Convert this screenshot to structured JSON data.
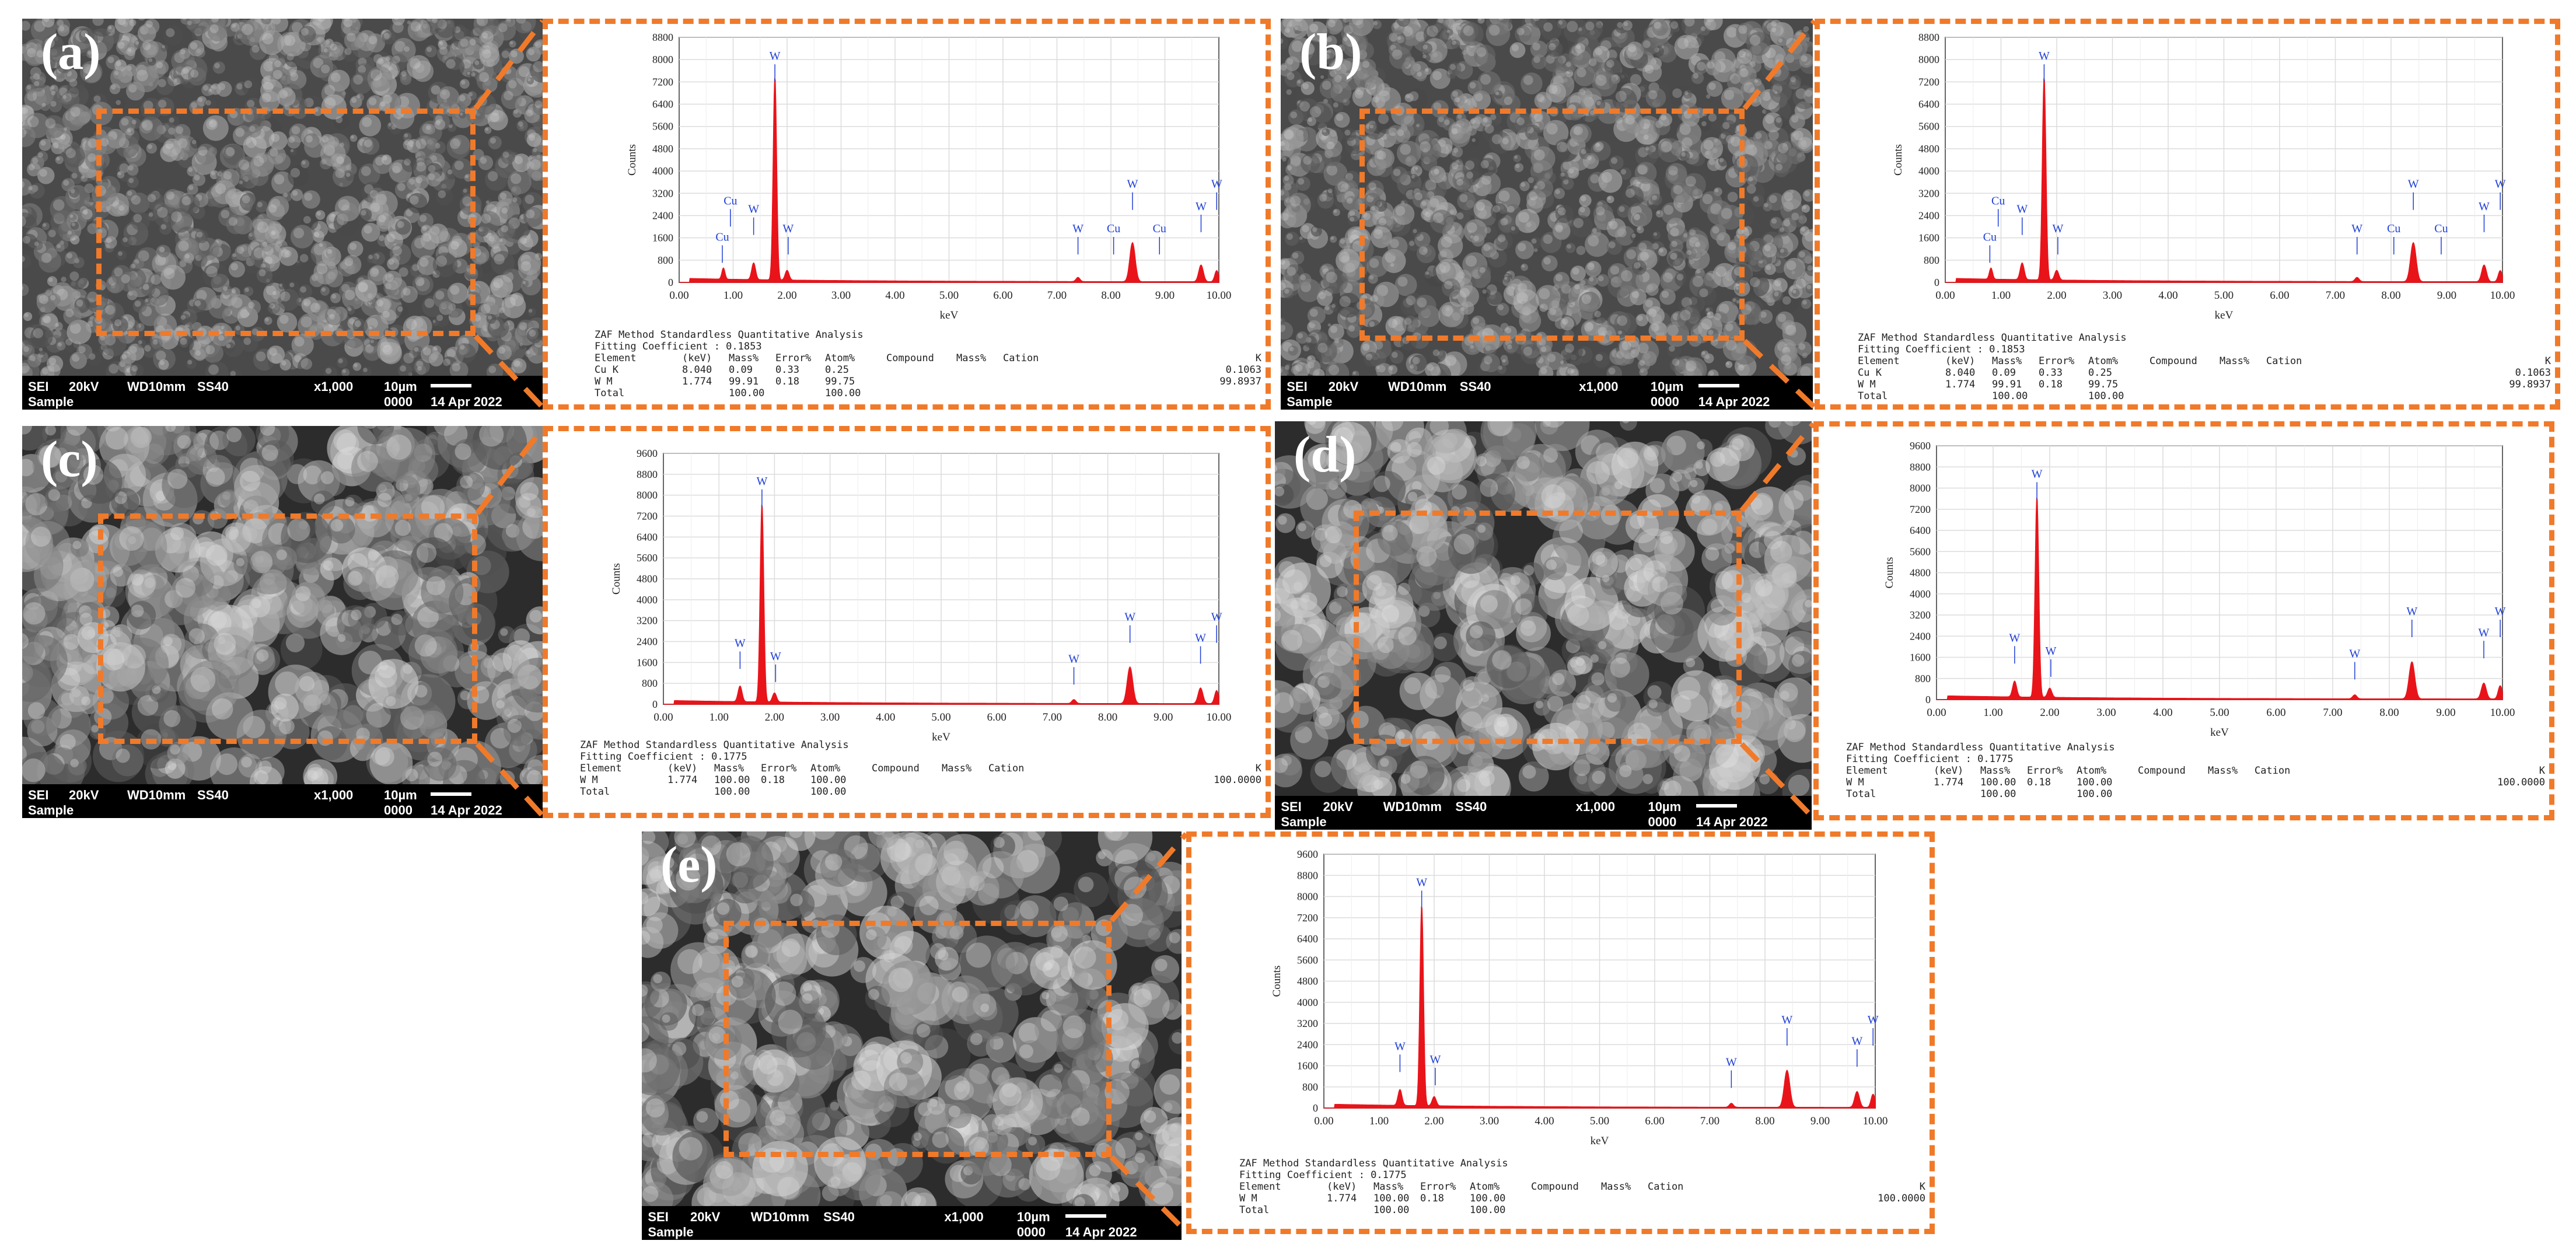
{
  "colors": {
    "dash": "#f07a2a",
    "spectrum": "#e8141a",
    "peak_label": "#1f3fd6",
    "grid": "#dcdcdc"
  },
  "panels": [
    {
      "id": "a",
      "label": "(a)",
      "sem": {
        "mode": "SEI",
        "kv": "20kV",
        "wd": "WD10mm",
        "ss": "SS40",
        "mag": "x1,000",
        "scale": "10µm",
        "sample": "Sample",
        "num": "0000",
        "date": "14 Apr 2022"
      },
      "spectrum": {
        "ylabel": "Counts",
        "xlabel": "keV",
        "yticks": [
          "0",
          "800",
          "1600",
          "2400",
          "3200",
          "4000",
          "4800",
          "5600",
          "6400",
          "7200",
          "8000",
          "8800"
        ],
        "ymax": 8800,
        "xticks": [
          "0.00",
          "1.00",
          "2.00",
          "3.00",
          "4.00",
          "5.00",
          "6.00",
          "7.00",
          "8.00",
          "9.00",
          "10.00"
        ],
        "peaks": [
          {
            "kev": 0.82,
            "counts": 400,
            "w": 0.04
          },
          {
            "kev": 1.38,
            "counts": 600,
            "w": 0.05
          },
          {
            "kev": 1.774,
            "counts": 7300,
            "w": 0.045
          },
          {
            "kev": 2.0,
            "counts": 350,
            "w": 0.05
          },
          {
            "kev": 7.39,
            "counts": 150,
            "w": 0.05
          },
          {
            "kev": 8.4,
            "counts": 1400,
            "w": 0.07
          },
          {
            "kev": 9.67,
            "counts": 600,
            "w": 0.06
          },
          {
            "kev": 9.96,
            "counts": 400,
            "w": 0.05
          }
        ],
        "labels": [
          {
            "text": "Cu",
            "kev": 0.8,
            "counts": 1500
          },
          {
            "text": "Cu",
            "kev": 0.95,
            "counts": 2800
          },
          {
            "text": "W",
            "kev": 1.38,
            "counts": 2500
          },
          {
            "text": "W",
            "kev": 1.774,
            "counts": 8000
          },
          {
            "text": "W",
            "kev": 2.02,
            "counts": 1800
          },
          {
            "text": "W",
            "kev": 7.39,
            "counts": 1800
          },
          {
            "text": "Cu",
            "kev": 8.05,
            "counts": 1800
          },
          {
            "text": "W",
            "kev": 8.4,
            "counts": 3400
          },
          {
            "text": "Cu",
            "kev": 8.9,
            "counts": 1800
          },
          {
            "text": "W",
            "kev": 9.67,
            "counts": 2600
          },
          {
            "text": "W",
            "kev": 9.96,
            "counts": 3400
          }
        ]
      },
      "zaf": {
        "title": "ZAF Method Standardless Quantitative Analysis",
        "fit": "Fitting Coefficient : 0.1853",
        "header": [
          "Element",
          "(keV)",
          "Mass%",
          "Error%",
          "Atom%",
          "Compound",
          "Mass%",
          "Cation",
          "K"
        ],
        "rows": [
          [
            "Cu K",
            "8.040",
            "0.09",
            "0.33",
            "0.25",
            "",
            "",
            "",
            "0.1063"
          ],
          [
            "W M",
            "1.774",
            "99.91",
            "0.18",
            "99.75",
            "",
            "",
            "",
            "99.8937"
          ]
        ],
        "total": [
          "Total",
          "",
          "100.00",
          "",
          "100.00"
        ]
      }
    },
    {
      "id": "b",
      "label": "(b)",
      "sem": {
        "mode": "SEI",
        "kv": "20kV",
        "wd": "WD10mm",
        "ss": "SS40",
        "mag": "x1,000",
        "scale": "10µm",
        "sample": "Sample",
        "num": "0000",
        "date": "14 Apr 2022"
      },
      "spectrum": {
        "ylabel": "Counts",
        "xlabel": "keV",
        "yticks": [
          "0",
          "800",
          "1600",
          "2400",
          "3200",
          "4000",
          "4800",
          "5600",
          "6400",
          "7200",
          "8000",
          "8800"
        ],
        "ymax": 8800,
        "xticks": [
          "0.00",
          "1.00",
          "2.00",
          "3.00",
          "4.00",
          "5.00",
          "6.00",
          "7.00",
          "8.00",
          "9.00",
          "10.00"
        ],
        "peaks": [
          {
            "kev": 0.82,
            "counts": 400,
            "w": 0.04
          },
          {
            "kev": 1.38,
            "counts": 600,
            "w": 0.05
          },
          {
            "kev": 1.774,
            "counts": 7300,
            "w": 0.045
          },
          {
            "kev": 2.0,
            "counts": 350,
            "w": 0.05
          },
          {
            "kev": 7.39,
            "counts": 150,
            "w": 0.05
          },
          {
            "kev": 8.4,
            "counts": 1400,
            "w": 0.07
          },
          {
            "kev": 9.67,
            "counts": 600,
            "w": 0.06
          },
          {
            "kev": 9.96,
            "counts": 400,
            "w": 0.05
          }
        ],
        "labels": [
          {
            "text": "Cu",
            "kev": 0.8,
            "counts": 1500
          },
          {
            "text": "Cu",
            "kev": 0.95,
            "counts": 2800
          },
          {
            "text": "W",
            "kev": 1.38,
            "counts": 2500
          },
          {
            "text": "W",
            "kev": 1.774,
            "counts": 8000
          },
          {
            "text": "W",
            "kev": 2.02,
            "counts": 1800
          },
          {
            "text": "W",
            "kev": 7.39,
            "counts": 1800
          },
          {
            "text": "Cu",
            "kev": 8.05,
            "counts": 1800
          },
          {
            "text": "W",
            "kev": 8.4,
            "counts": 3400
          },
          {
            "text": "Cu",
            "kev": 8.9,
            "counts": 1800
          },
          {
            "text": "W",
            "kev": 9.67,
            "counts": 2600
          },
          {
            "text": "W",
            "kev": 9.96,
            "counts": 3400
          }
        ]
      },
      "zaf": {
        "title": "ZAF Method Standardless Quantitative Analysis",
        "fit": "Fitting Coefficient : 0.1853",
        "header": [
          "Element",
          "(keV)",
          "Mass%",
          "Error%",
          "Atom%",
          "Compound",
          "Mass%",
          "Cation",
          "K"
        ],
        "rows": [
          [
            "Cu K",
            "8.040",
            "0.09",
            "0.33",
            "0.25",
            "",
            "",
            "",
            "0.1063"
          ],
          [
            "W M",
            "1.774",
            "99.91",
            "0.18",
            "99.75",
            "",
            "",
            "",
            "99.8937"
          ]
        ],
        "total": [
          "Total",
          "",
          "100.00",
          "",
          "100.00"
        ]
      }
    },
    {
      "id": "c",
      "label": "(c)",
      "sem": {
        "mode": "SEI",
        "kv": "20kV",
        "wd": "WD10mm",
        "ss": "SS40",
        "mag": "x1,000",
        "scale": "10µm",
        "sample": "Sample",
        "num": "0000",
        "date": "14 Apr 2022"
      },
      "spectrum": {
        "ylabel": "Counts",
        "xlabel": "keV",
        "yticks": [
          "0",
          "800",
          "1600",
          "2400",
          "3200",
          "4000",
          "4800",
          "5600",
          "6400",
          "7200",
          "8000",
          "8800",
          "9600"
        ],
        "ymax": 9600,
        "xticks": [
          "0.00",
          "1.00",
          "2.00",
          "3.00",
          "4.00",
          "5.00",
          "6.00",
          "7.00",
          "8.00",
          "9.00",
          "10.00"
        ],
        "peaks": [
          {
            "kev": 1.38,
            "counts": 600,
            "w": 0.05
          },
          {
            "kev": 1.774,
            "counts": 7600,
            "w": 0.045
          },
          {
            "kev": 2.0,
            "counts": 350,
            "w": 0.05
          },
          {
            "kev": 7.39,
            "counts": 150,
            "w": 0.05
          },
          {
            "kev": 8.4,
            "counts": 1400,
            "w": 0.07
          },
          {
            "kev": 9.67,
            "counts": 600,
            "w": 0.06
          },
          {
            "kev": 9.96,
            "counts": 500,
            "w": 0.05
          }
        ],
        "labels": [
          {
            "text": "W",
            "kev": 1.38,
            "counts": 2200
          },
          {
            "text": "W",
            "kev": 1.774,
            "counts": 8400
          },
          {
            "text": "W",
            "kev": 2.02,
            "counts": 1700
          },
          {
            "text": "W",
            "kev": 7.39,
            "counts": 1600
          },
          {
            "text": "W",
            "kev": 8.4,
            "counts": 3200
          },
          {
            "text": "W",
            "kev": 9.67,
            "counts": 2400
          },
          {
            "text": "W",
            "kev": 9.96,
            "counts": 3200
          }
        ]
      },
      "zaf": {
        "title": "ZAF Method Standardless Quantitative Analysis",
        "fit": "Fitting Coefficient : 0.1775",
        "header": [
          "Element",
          "(keV)",
          "Mass%",
          "Error%",
          "Atom%",
          "Compound",
          "Mass%",
          "Cation",
          "K"
        ],
        "rows": [
          [
            "W M",
            "1.774",
            "100.00",
            "0.18",
            "100.00",
            "",
            "",
            "",
            "100.0000"
          ]
        ],
        "total": [
          "Total",
          "",
          "100.00",
          "",
          "100.00"
        ]
      }
    },
    {
      "id": "d",
      "label": "(d)",
      "sem": {
        "mode": "SEI",
        "kv": "20kV",
        "wd": "WD10mm",
        "ss": "SS40",
        "mag": "x1,000",
        "scale": "10µm",
        "sample": "Sample",
        "num": "0000",
        "date": "14 Apr 2022"
      },
      "spectrum": {
        "ylabel": "Counts",
        "xlabel": "keV",
        "yticks": [
          "0",
          "800",
          "1600",
          "2400",
          "3200",
          "4000",
          "4800",
          "5600",
          "6400",
          "7200",
          "8000",
          "8800",
          "9600"
        ],
        "ymax": 9600,
        "xticks": [
          "0.00",
          "1.00",
          "2.00",
          "3.00",
          "4.00",
          "5.00",
          "6.00",
          "7.00",
          "8.00",
          "9.00",
          "10.00"
        ],
        "peaks": [
          {
            "kev": 1.38,
            "counts": 600,
            "w": 0.05
          },
          {
            "kev": 1.774,
            "counts": 7600,
            "w": 0.045
          },
          {
            "kev": 2.0,
            "counts": 350,
            "w": 0.05
          },
          {
            "kev": 7.39,
            "counts": 150,
            "w": 0.05
          },
          {
            "kev": 8.4,
            "counts": 1400,
            "w": 0.07
          },
          {
            "kev": 9.67,
            "counts": 600,
            "w": 0.06
          },
          {
            "kev": 9.96,
            "counts": 500,
            "w": 0.05
          }
        ],
        "labels": [
          {
            "text": "W",
            "kev": 1.38,
            "counts": 2200
          },
          {
            "text": "W",
            "kev": 1.774,
            "counts": 8400
          },
          {
            "text": "W",
            "kev": 2.02,
            "counts": 1700
          },
          {
            "text": "W",
            "kev": 7.39,
            "counts": 1600
          },
          {
            "text": "W",
            "kev": 8.4,
            "counts": 3200
          },
          {
            "text": "W",
            "kev": 9.67,
            "counts": 2400
          },
          {
            "text": "W",
            "kev": 9.96,
            "counts": 3200
          }
        ]
      },
      "zaf": {
        "title": "ZAF Method Standardless Quantitative Analysis",
        "fit": "Fitting Coefficient : 0.1775",
        "header": [
          "Element",
          "(keV)",
          "Mass%",
          "Error%",
          "Atom%",
          "Compound",
          "Mass%",
          "Cation",
          "K"
        ],
        "rows": [
          [
            "W M",
            "1.774",
            "100.00",
            "0.18",
            "100.00",
            "",
            "",
            "",
            "100.0000"
          ]
        ],
        "total": [
          "Total",
          "",
          "100.00",
          "",
          "100.00"
        ]
      }
    },
    {
      "id": "e",
      "label": "(e)",
      "sem": {
        "mode": "SEI",
        "kv": "20kV",
        "wd": "WD10mm",
        "ss": "SS40",
        "mag": "x1,000",
        "scale": "10µm",
        "sample": "Sample",
        "num": "0000",
        "date": "14 Apr 2022"
      },
      "spectrum": {
        "ylabel": "Counts",
        "xlabel": "keV",
        "yticks": [
          "0",
          "800",
          "1600",
          "2400",
          "3200",
          "4000",
          "4800",
          "5600",
          "6400",
          "7200",
          "8000",
          "8800",
          "9600"
        ],
        "ymax": 9600,
        "xticks": [
          "0.00",
          "1.00",
          "2.00",
          "3.00",
          "4.00",
          "5.00",
          "6.00",
          "7.00",
          "8.00",
          "9.00",
          "10.00"
        ],
        "peaks": [
          {
            "kev": 1.38,
            "counts": 600,
            "w": 0.05
          },
          {
            "kev": 1.774,
            "counts": 7600,
            "w": 0.045
          },
          {
            "kev": 2.0,
            "counts": 350,
            "w": 0.05
          },
          {
            "kev": 7.39,
            "counts": 150,
            "w": 0.05
          },
          {
            "kev": 8.4,
            "counts": 1400,
            "w": 0.07
          },
          {
            "kev": 9.67,
            "counts": 600,
            "w": 0.06
          },
          {
            "kev": 9.96,
            "counts": 500,
            "w": 0.05
          }
        ],
        "labels": [
          {
            "text": "W",
            "kev": 1.38,
            "counts": 2200
          },
          {
            "text": "W",
            "kev": 1.774,
            "counts": 8400
          },
          {
            "text": "W",
            "kev": 2.02,
            "counts": 1700
          },
          {
            "text": "W",
            "kev": 7.39,
            "counts": 1600
          },
          {
            "text": "W",
            "kev": 8.4,
            "counts": 3200
          },
          {
            "text": "W",
            "kev": 9.67,
            "counts": 2400
          },
          {
            "text": "W",
            "kev": 9.96,
            "counts": 3200
          }
        ]
      },
      "zaf": {
        "title": "ZAF Method Standardless Quantitative Analysis",
        "fit": "Fitting Coefficient : 0.1775",
        "header": [
          "Element",
          "(keV)",
          "Mass%",
          "Error%",
          "Atom%",
          "Compound",
          "Mass%",
          "Cation",
          "K"
        ],
        "rows": [
          [
            "W M",
            "1.774",
            "100.00",
            "0.18",
            "100.00",
            "",
            "",
            "",
            "100.0000"
          ]
        ],
        "total": [
          "Total",
          "",
          "100.00",
          "",
          "100.00"
        ]
      }
    }
  ]
}
